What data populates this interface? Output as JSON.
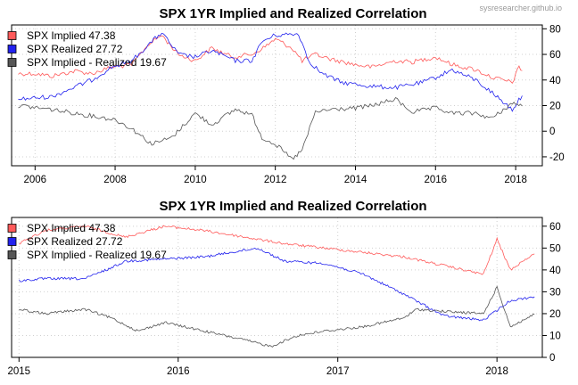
{
  "watermark": "sysresearcher.github.io",
  "chart_data": [
    {
      "type": "line",
      "title": "SPX 1YR Implied and Realized Correlation",
      "xlim": [
        "2005-06-01",
        "2018-09-01"
      ],
      "ylim": [
        -27,
        83
      ],
      "x_ticks": [
        "2006",
        "2008",
        "2010",
        "2012",
        "2014",
        "2016",
        "2018"
      ],
      "y_ticks": [
        -20,
        0,
        20,
        40,
        60,
        80
      ],
      "grid": true,
      "legend_position": "top-left",
      "legend": [
        "SPX Implied 47.38",
        "SPX Realized 27.72",
        "SPX Implied - Realized 19.67"
      ],
      "series": [
        {
          "name": "SPX Implied",
          "color": "#ff5a5a",
          "x": [
            "2005-08",
            "2006-01",
            "2006-06",
            "2007-01",
            "2007-06",
            "2007-12",
            "2008-06",
            "2008-11",
            "2009-03",
            "2009-08",
            "2010-01",
            "2010-06",
            "2010-12",
            "2011-06",
            "2011-10",
            "2012-01",
            "2012-06",
            "2012-09",
            "2013-01",
            "2013-06",
            "2014-01",
            "2014-06",
            "2015-01",
            "2015-06",
            "2016-01",
            "2016-06",
            "2017-01",
            "2017-06",
            "2017-12",
            "2018-02",
            "2018-03"
          ],
          "values": [
            45,
            45,
            43,
            47,
            45,
            50,
            52,
            68,
            75,
            60,
            55,
            65,
            58,
            60,
            66,
            72,
            65,
            55,
            60,
            56,
            52,
            50,
            55,
            54,
            58,
            52,
            48,
            42,
            38,
            50,
            47.38
          ]
        },
        {
          "name": "SPX Realized",
          "color": "#2222ee",
          "x": [
            "2005-08",
            "2006-06",
            "2007-06",
            "2007-12",
            "2008-06",
            "2008-12",
            "2009-03",
            "2009-08",
            "2010-01",
            "2010-06",
            "2011-01",
            "2011-06",
            "2011-09",
            "2012-01",
            "2012-08",
            "2012-11",
            "2013-03",
            "2013-09",
            "2014-06",
            "2015-01",
            "2015-09",
            "2016-01",
            "2016-06",
            "2017-01",
            "2017-06",
            "2017-12",
            "2018-03"
          ],
          "values": [
            25,
            27,
            40,
            50,
            55,
            70,
            77,
            60,
            58,
            63,
            55,
            55,
            70,
            75,
            76,
            55,
            45,
            38,
            35,
            34,
            38,
            42,
            48,
            40,
            30,
            17,
            27.72
          ]
        },
        {
          "name": "SPX Implied - Realized",
          "color": "#555555",
          "x": [
            "2005-08",
            "2006-06",
            "2007-01",
            "2007-06",
            "2008-01",
            "2008-06",
            "2008-12",
            "2009-06",
            "2010-01",
            "2010-06",
            "2011-01",
            "2011-06",
            "2011-09",
            "2012-01",
            "2012-06",
            "2012-09",
            "2013-01",
            "2013-06",
            "2014-01",
            "2014-06",
            "2015-01",
            "2015-06",
            "2016-01",
            "2016-06",
            "2017-01",
            "2017-06",
            "2017-12",
            "2018-03"
          ],
          "values": [
            20,
            17,
            14,
            12,
            9,
            2,
            -10,
            -5,
            14,
            5,
            17,
            13,
            -5,
            -10,
            -22,
            -15,
            15,
            17,
            18,
            20,
            25,
            15,
            18,
            14,
            14,
            10,
            22,
            19.67
          ]
        }
      ]
    },
    {
      "type": "line",
      "title": "SPX 1YR Implied and Realized Correlation",
      "xlim": [
        "2014-12-15",
        "2018-04-15"
      ],
      "ylim": [
        0,
        64
      ],
      "x_ticks": [
        "2015",
        "2016",
        "2017",
        "2018"
      ],
      "y_ticks": [
        0,
        10,
        20,
        30,
        40,
        50,
        60
      ],
      "grid": true,
      "legend_position": "top-left",
      "legend": [
        "SPX Implied 47.38",
        "SPX Realized 27.72",
        "SPX Implied - Realized 19.67"
      ],
      "series": [
        {
          "name": "SPX Implied",
          "color": "#ff5a5a",
          "x": [
            "2015-01",
            "2015-03",
            "2015-06",
            "2015-09",
            "2015-12",
            "2016-03",
            "2016-06",
            "2016-09",
            "2016-12",
            "2017-03",
            "2017-06",
            "2017-09",
            "2017-12",
            "2018-01",
            "2018-02",
            "2018-03",
            "2018-03-28"
          ],
          "values": [
            52,
            58,
            60,
            55,
            60,
            58,
            55,
            52,
            50,
            48,
            46,
            42,
            38,
            54,
            40,
            44,
            47.38
          ]
        },
        {
          "name": "SPX Realized",
          "color": "#2222ee",
          "x": [
            "2015-01",
            "2015-03",
            "2015-06",
            "2015-08",
            "2015-09",
            "2015-12",
            "2016-03",
            "2016-06",
            "2016-07",
            "2016-09",
            "2016-12",
            "2017-03",
            "2017-06",
            "2017-09",
            "2017-12",
            "2018-02",
            "2018-03-28"
          ],
          "values": [
            35,
            36,
            36,
            41,
            44,
            45,
            46,
            49,
            50,
            44,
            43,
            38,
            29,
            19,
            17,
            26,
            27.72
          ]
        },
        {
          "name": "SPX Implied - Realized",
          "color": "#555555",
          "x": [
            "2015-01",
            "2015-03",
            "2015-06",
            "2015-08",
            "2015-10",
            "2015-12",
            "2016-03",
            "2016-06",
            "2016-08",
            "2016-10",
            "2016-12",
            "2017-03",
            "2017-06",
            "2017-07",
            "2017-09",
            "2017-12",
            "2018-01",
            "2018-02",
            "2018-03-28"
          ],
          "values": [
            22,
            20,
            22,
            18,
            12,
            16,
            12,
            8,
            5,
            10,
            12,
            14,
            18,
            22,
            21,
            20,
            32,
            14,
            19.67
          ]
        }
      ]
    }
  ]
}
